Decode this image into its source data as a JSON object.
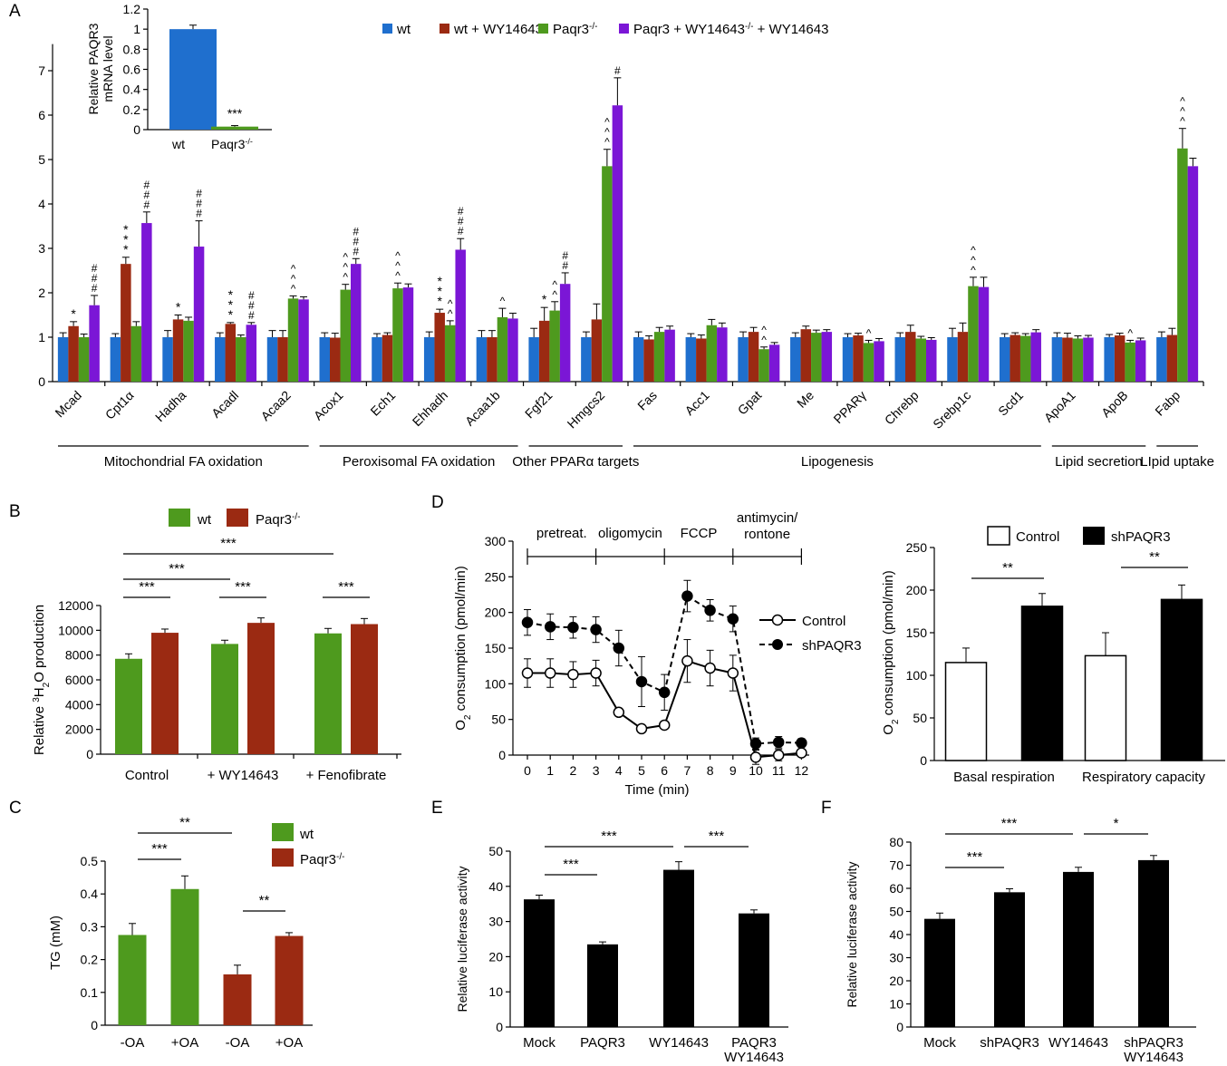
{
  "colors": {
    "wt": "#1f6fce",
    "wt_wy": "#9b2a12",
    "ko": "#4e9a1e",
    "ko_wy": "#7b16d6",
    "black": "#000000"
  },
  "chart_data": [
    {
      "id": "A",
      "letter": "A",
      "type": "bar",
      "ylabel": "",
      "ylim": [
        0,
        8
      ],
      "yticks": [
        0,
        1,
        2,
        3,
        4,
        5,
        6,
        7
      ],
      "legend_placement": "top",
      "series": [
        {
          "name": "wt",
          "values": [
            1.0,
            1.0,
            1.0,
            1.0,
            1.0,
            1.0,
            1.0,
            1.0,
            1.0,
            1.0,
            1.0,
            1.0,
            1.0,
            1.0,
            1.0,
            1.0,
            1.0,
            1.0,
            1.0,
            1.0,
            1.0,
            1.0
          ]
        },
        {
          "name": "wt + WY14643",
          "values": [
            1.25,
            2.65,
            1.4,
            1.3,
            1.0,
            0.99,
            1.05,
            1.55,
            1.0,
            1.37,
            1.4,
            0.95,
            0.97,
            1.12,
            1.18,
            1.04,
            1.12,
            1.12,
            1.05,
            0.99,
            1.04,
            1.05
          ]
        },
        {
          "name": "Paqr3",
          "values": [
            1.0,
            1.25,
            1.37,
            1.0,
            1.87,
            2.07,
            2.1,
            1.27,
            1.45,
            1.6,
            4.85,
            1.12,
            1.27,
            0.73,
            1.1,
            0.87,
            0.97,
            2.15,
            1.03,
            0.97,
            0.88,
            5.25
          ]
        },
        {
          "name": "Paqr3 + WY14643",
          "values": [
            1.72,
            3.57,
            3.04,
            1.28,
            1.85,
            2.65,
            2.12,
            2.97,
            1.42,
            2.2,
            6.22,
            1.17,
            1.22,
            0.83,
            1.12,
            0.91,
            0.94,
            2.13,
            1.11,
            0.99,
            0.93,
            4.85
          ]
        }
      ],
      "errors": [
        [
          0.1,
          0.08,
          0.15,
          0.1,
          0.15,
          0.1,
          0.08,
          0.12,
          0.15,
          0.2,
          0.12,
          0.12,
          0.08,
          0.12,
          0.1,
          0.08,
          0.1,
          0.2,
          0.08,
          0.1,
          0.06,
          0.12
        ],
        [
          0.1,
          0.15,
          0.1,
          0.03,
          0.15,
          0.1,
          0.05,
          0.08,
          0.15,
          0.3,
          0.35,
          0.08,
          0.08,
          0.1,
          0.07,
          0.05,
          0.15,
          0.2,
          0.05,
          0.1,
          0.05,
          0.15
        ],
        [
          0.07,
          0.1,
          0.08,
          0.05,
          0.06,
          0.12,
          0.12,
          0.1,
          0.2,
          0.2,
          0.38,
          0.1,
          0.13,
          0.05,
          0.06,
          0.06,
          0.05,
          0.2,
          0.05,
          0.06,
          0.05,
          0.45
        ],
        [
          0.22,
          0.25,
          0.58,
          0.05,
          0.06,
          0.12,
          0.08,
          0.25,
          0.12,
          0.25,
          0.62,
          0.08,
          0.1,
          0.05,
          0.05,
          0.06,
          0.05,
          0.22,
          0.06,
          0.05,
          0.05,
          0.18
        ]
      ],
      "categories": [
        "Mcad",
        "Cpt1α",
        "Hadha",
        "Acadl",
        "Acaa2",
        "Acox1",
        "Ech1",
        "Ehhadh",
        "Acaa1b",
        "Fgf21",
        "Hmgcs2",
        "Fas",
        "Acc1",
        "Gpat",
        "Me",
        "PPARγ",
        "Chrebp",
        "Srebp1c",
        "Scd1",
        "ApoA1",
        "ApoB",
        "Fabp"
      ],
      "annotations": [
        {
          "cat": 0,
          "bar": 1,
          "text": "*"
        },
        {
          "cat": 0,
          "bar": 3,
          "text": "#\n#\n#"
        },
        {
          "cat": 1,
          "bar": 1,
          "text": "*\n*\n*"
        },
        {
          "cat": 1,
          "bar": 3,
          "text": "#\n#\n#"
        },
        {
          "cat": 2,
          "bar": 1,
          "text": "*"
        },
        {
          "cat": 2,
          "bar": 3,
          "text": "#\n#\n#"
        },
        {
          "cat": 3,
          "bar": 1,
          "text": "*\n*\n*"
        },
        {
          "cat": 3,
          "bar": 3,
          "text": "#\n#\n#"
        },
        {
          "cat": 4,
          "bar": 2,
          "text": "^\n^\n^"
        },
        {
          "cat": 5,
          "bar": 2,
          "text": "^\n^\n^"
        },
        {
          "cat": 5,
          "bar": 3,
          "text": "#\n#\n#"
        },
        {
          "cat": 6,
          "bar": 2,
          "text": "^\n^\n^"
        },
        {
          "cat": 7,
          "bar": 1,
          "text": "*\n*\n*"
        },
        {
          "cat": 7,
          "bar": 2,
          "text": "^\n^"
        },
        {
          "cat": 7,
          "bar": 3,
          "text": "#\n#\n#"
        },
        {
          "cat": 8,
          "bar": 2,
          "text": "^"
        },
        {
          "cat": 9,
          "bar": 1,
          "text": "*"
        },
        {
          "cat": 9,
          "bar": 2,
          "text": "^\n^"
        },
        {
          "cat": 9,
          "bar": 3,
          "text": "#\n#"
        },
        {
          "cat": 10,
          "bar": 2,
          "text": "^\n^\n^"
        },
        {
          "cat": 10,
          "bar": 3,
          "text": "#"
        },
        {
          "cat": 13,
          "bar": 2,
          "text": "^\n^"
        },
        {
          "cat": 15,
          "bar": 2,
          "text": "^"
        },
        {
          "cat": 17,
          "bar": 2,
          "text": "^\n^\n^"
        },
        {
          "cat": 20,
          "bar": 2,
          "text": "^"
        },
        {
          "cat": 21,
          "bar": 2,
          "text": "^\n^\n^"
        }
      ],
      "groups": [
        {
          "label": "Mitochondrial FA oxidation",
          "from": 0,
          "to": 4
        },
        {
          "label": "Peroxisomal FA oxidation",
          "from": 5,
          "to": 8
        },
        {
          "label": "Other PPARα targets",
          "from": 9,
          "to": 10
        },
        {
          "label": "Lipogenesis",
          "from": 11,
          "to": 18
        },
        {
          "label": "Lipid secretion",
          "from": 19,
          "to": 20
        },
        {
          "label": "LIpid uptake",
          "from": 21,
          "to": 21
        }
      ]
    },
    {
      "id": "A_inset",
      "type": "bar",
      "ylabel": "Relative PAQR3\nmRNA level",
      "ylim": [
        0,
        1.2
      ],
      "yticks": [
        0,
        0.2,
        0.4,
        0.6,
        0.8,
        1,
        1.2
      ],
      "ytick_labels": [
        "0",
        "0.2",
        "0.4",
        "0.6",
        "0.8",
        "1",
        "1.2"
      ],
      "categories": [
        "wt",
        "Paqr3"
      ],
      "values": [
        1.0,
        0.03
      ],
      "errors": [
        0.04,
        0.01
      ],
      "annotations": [
        {
          "index": 1,
          "text": "***"
        }
      ]
    },
    {
      "id": "B",
      "letter": "B",
      "type": "bar",
      "ylabel": "Relative 3H2O production",
      "ylim": [
        0,
        12000
      ],
      "yticks": [
        0,
        2000,
        4000,
        6000,
        8000,
        10000,
        12000
      ],
      "categories": [
        "Control",
        "+ WY14643",
        "+ Fenofibrate"
      ],
      "series": [
        {
          "name": "wt",
          "values": [
            7700,
            8900,
            9750
          ],
          "errors": [
            400,
            300,
            400
          ]
        },
        {
          "name": "Paqr3",
          "values": [
            9800,
            10600,
            10500
          ],
          "errors": [
            300,
            400,
            450
          ]
        }
      ],
      "brackets": [
        {
          "from": 0,
          "to": 1,
          "text": "***"
        },
        {
          "from": 2,
          "to": 3,
          "text": "***"
        },
        {
          "from": 4,
          "to": 5,
          "text": "***"
        },
        {
          "from": 0,
          "to": 2,
          "text": "***"
        },
        {
          "from": 0,
          "to": 4,
          "text": "***"
        }
      ]
    },
    {
      "id": "C",
      "letter": "C",
      "type": "bar",
      "ylabel": "TG (mM)",
      "ylim": [
        0,
        0.5
      ],
      "yticks": [
        0,
        0.1,
        0.2,
        0.3,
        0.4,
        0.5
      ],
      "ytick_labels": [
        "0",
        "0.1",
        "0.2",
        "0.3",
        "0.4",
        "0.5"
      ],
      "categories": [
        "-OA",
        "+OA",
        "-OA",
        "+OA"
      ],
      "values": [
        0.275,
        0.415,
        0.155,
        0.272
      ],
      "errors": [
        0.035,
        0.04,
        0.028,
        0.01
      ],
      "bar_series": [
        "wt",
        "wt",
        "Paqr3",
        "Paqr3"
      ],
      "legend": [
        "wt",
        "Paqr3"
      ],
      "brackets": [
        {
          "from": 0,
          "to": 1,
          "text": "***"
        },
        {
          "from": 0,
          "to": 2,
          "text": "**"
        },
        {
          "from": 2,
          "to": 3,
          "text": "**"
        }
      ]
    },
    {
      "id": "D_line",
      "letter": "D",
      "type": "line",
      "ylabel": "O2 consumption (pmol/min)",
      "xlabel": "Time (min)",
      "ylim": [
        0,
        300
      ],
      "yticks": [
        0,
        50,
        100,
        150,
        200,
        250,
        300
      ],
      "x": [
        0,
        1,
        2,
        3,
        4,
        5,
        6,
        7,
        8,
        9,
        10,
        11,
        12
      ],
      "series": [
        {
          "name": "Control",
          "values": [
            115,
            115,
            113,
            115,
            60,
            37,
            42,
            132,
            122,
            115,
            -3,
            0,
            3
          ],
          "errors": [
            20,
            20,
            18,
            18,
            0,
            0,
            5,
            30,
            25,
            25,
            10,
            8,
            5
          ]
        },
        {
          "name": "shPAQR3",
          "values": [
            186,
            180,
            179,
            176,
            150,
            103,
            88,
            223,
            203,
            191,
            16,
            18,
            17
          ],
          "errors": [
            18,
            18,
            15,
            18,
            25,
            35,
            25,
            22,
            15,
            18,
            8,
            8,
            6
          ]
        }
      ],
      "phases": [
        {
          "label": "pretreat.",
          "from": 0,
          "to": 3
        },
        {
          "label": "oligomycin",
          "from": 3,
          "to": 6
        },
        {
          "label": "FCCP",
          "from": 6,
          "to": 9
        },
        {
          "label": "antimycin/\nrontone",
          "from": 9,
          "to": 12
        }
      ]
    },
    {
      "id": "D_bar",
      "type": "bar",
      "ylabel": "O2 consumption (pmol/min)",
      "ylim": [
        0,
        250
      ],
      "yticks": [
        0,
        50,
        100,
        150,
        200,
        250
      ],
      "categories": [
        "Basal respiration",
        "Respiratory capacity"
      ],
      "series": [
        {
          "name": "Control",
          "values": [
            115,
            123
          ],
          "errors": [
            17,
            27
          ]
        },
        {
          "name": "shPAQR3",
          "values": [
            181,
            189
          ],
          "errors": [
            15,
            17
          ]
        }
      ],
      "brackets": [
        {
          "cat": 0,
          "text": "**"
        },
        {
          "cat": 1,
          "text": "**"
        }
      ]
    },
    {
      "id": "E",
      "letter": "E",
      "type": "bar",
      "ylabel": "Relative luciferase activity",
      "ylim": [
        0,
        50
      ],
      "yticks": [
        0,
        10,
        20,
        30,
        40,
        50
      ],
      "categories": [
        "Mock",
        "PAQR3",
        "WY14643",
        "PAQR3\nWY14643"
      ],
      "values": [
        36.3,
        23.5,
        44.7,
        32.3
      ],
      "errors": [
        1.2,
        0.7,
        2.3,
        1.0
      ],
      "brackets": [
        {
          "from": 0,
          "to": 1,
          "text": "***"
        },
        {
          "from": 0,
          "to": 2,
          "text": "***"
        },
        {
          "from": 2,
          "to": 3,
          "text": "***"
        }
      ]
    },
    {
      "id": "F",
      "letter": "F",
      "type": "bar",
      "ylabel": "Relative luciferase activity",
      "ylim": [
        0,
        80
      ],
      "yticks": [
        0,
        10,
        20,
        30,
        40,
        50,
        60,
        70,
        80
      ],
      "categories": [
        "Mock",
        "shPAQR3",
        "WY14643",
        "shPAQR3\nWY14643"
      ],
      "values": [
        46.8,
        58.3,
        67.1,
        72.2
      ],
      "errors": [
        2.5,
        1.5,
        2.0,
        2.0
      ],
      "brackets": [
        {
          "from": 0,
          "to": 1,
          "text": "***"
        },
        {
          "from": 0,
          "to": 2,
          "text": "***"
        },
        {
          "from": 2,
          "to": 3,
          "text": "*"
        }
      ]
    }
  ]
}
